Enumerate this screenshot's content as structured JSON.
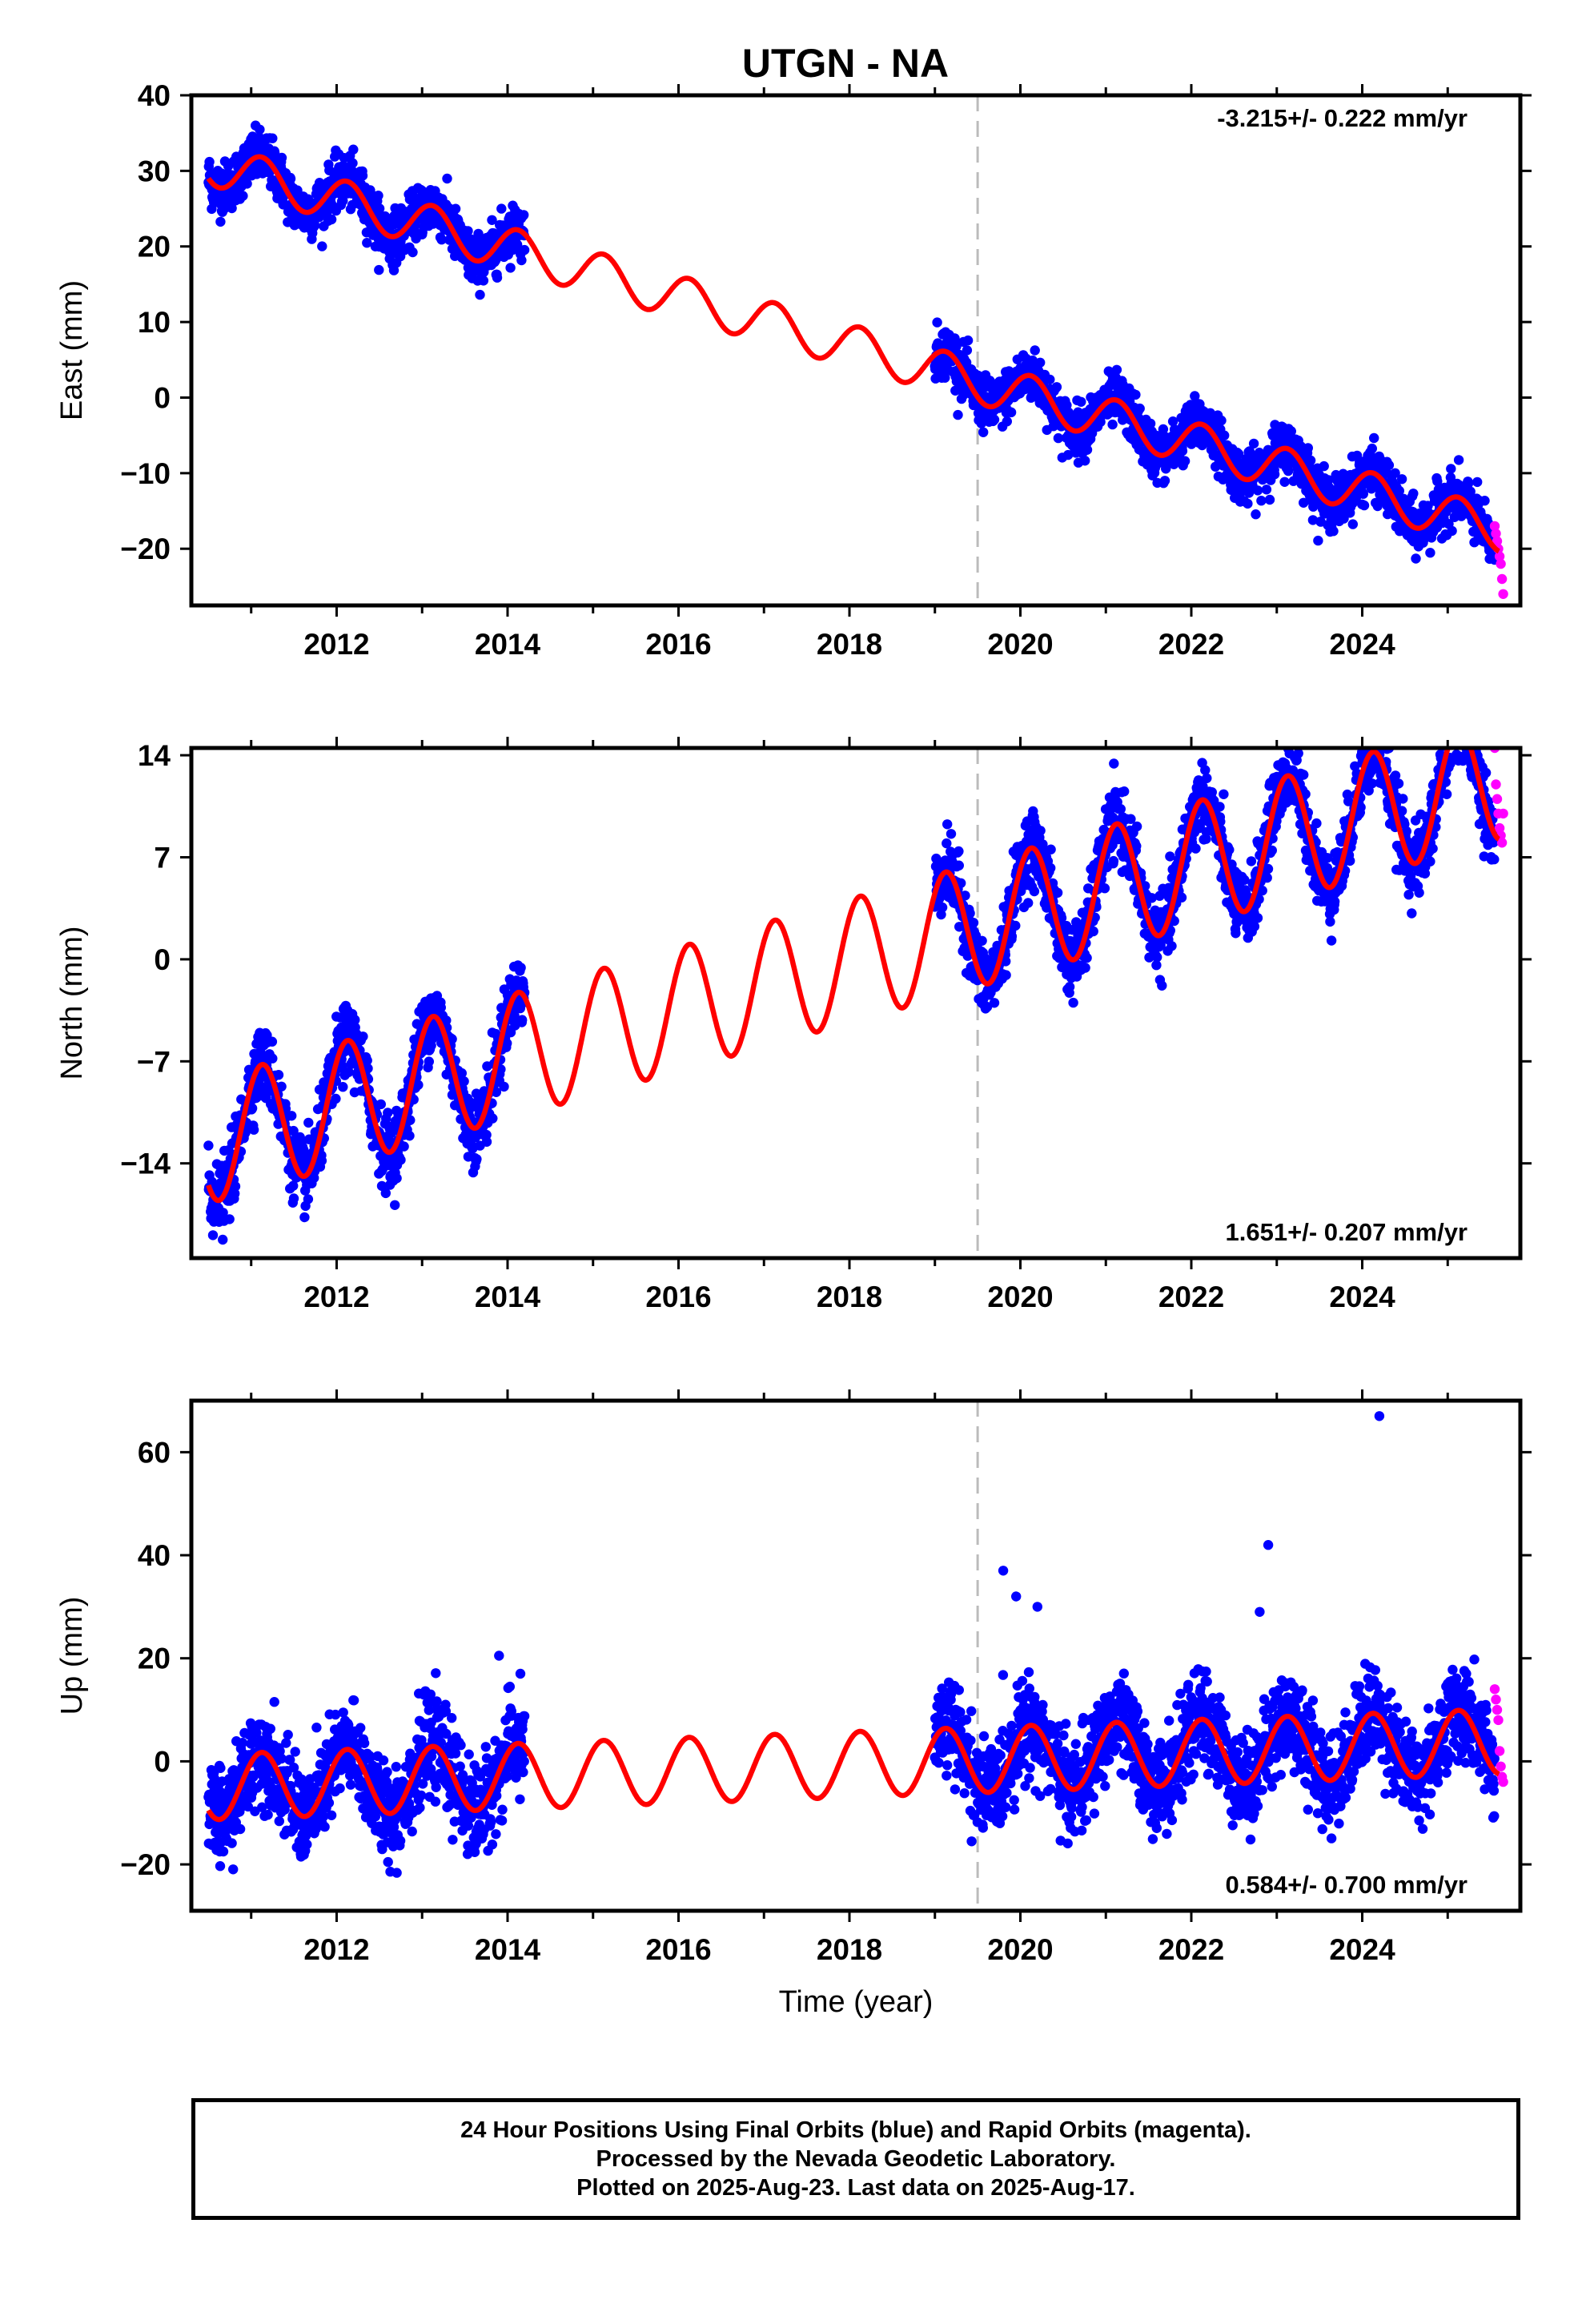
{
  "title": "UTGN - NA",
  "colors": {
    "final_orbits": "#0000ff",
    "rapid_orbits": "#ff00ff",
    "model_fit": "#ff0000",
    "equipment_change": "#bbbbbb"
  },
  "chart_data": [
    {
      "type": "scatter",
      "ylabel": "East (mm)",
      "xlabel": "",
      "xlim": [
        2010.3,
        2025.85
      ],
      "ylim": [
        -27.5,
        40
      ],
      "yticks": [
        -20,
        -10,
        0,
        10,
        20,
        30,
        40
      ],
      "xticks": [
        2012,
        2014,
        2016,
        2018,
        2020,
        2022,
        2024
      ],
      "rate_label": "-3.215+/- 0.222 mm/yr",
      "rate_position": "top-right",
      "equipment_change_year": 2019.5,
      "series": [
        {
          "kind": "final",
          "segments": [
            [
              2010.5,
              2014.2
            ],
            [
              2019.0,
              2025.55
            ]
          ],
          "trend": [
            31.0,
            -3.215
          ],
          "amp": [
            2.0,
            2.0
          ],
          "noise": 1.7
        },
        {
          "kind": "rapid",
          "x_range": [
            2025.55,
            2025.65
          ],
          "values": [
            -17,
            -18,
            -19,
            -20,
            -21,
            -22,
            -24,
            -26
          ]
        },
        {
          "kind": "model",
          "x_range": [
            2010.5,
            2025.6
          ],
          "trend": [
            31.0,
            -3.215
          ],
          "amp": [
            2.0,
            2.0
          ]
        }
      ]
    },
    {
      "type": "scatter",
      "ylabel": "North (mm)",
      "xlabel": "",
      "xlim": [
        2010.3,
        2025.85
      ],
      "ylim": [
        -20.5,
        14.5
      ],
      "yticks": [
        -14,
        -7,
        0,
        7,
        14
      ],
      "xticks": [
        2012,
        2014,
        2016,
        2018,
        2020,
        2022,
        2024
      ],
      "rate_label": "1.651+/- 0.207 mm/yr",
      "rate_position": "bottom-right",
      "equipment_change_year": 2019.5,
      "series": [
        {
          "kind": "final",
          "segments": [
            [
              2010.5,
              2014.2
            ],
            [
              2019.0,
              2025.55
            ]
          ],
          "trend": [
            -12.5,
            1.651
          ],
          "amp": [
            3.0,
            3.0
          ],
          "noise": 1.2
        },
        {
          "kind": "rapid",
          "x_range": [
            2025.55,
            2025.65
          ],
          "values": [
            14.5,
            12,
            11,
            10,
            9,
            8.5,
            8,
            10
          ]
        },
        {
          "kind": "model",
          "x_range": [
            2010.5,
            2025.6
          ],
          "trend": [
            -12.5,
            1.651
          ],
          "amp": [
            3.0,
            3.0
          ]
        }
      ]
    },
    {
      "type": "scatter",
      "ylabel": "Up (mm)",
      "xlabel": "Time (year)",
      "xlim": [
        2010.3,
        2025.85
      ],
      "ylim": [
        -29,
        70
      ],
      "yticks": [
        -20,
        0,
        20,
        40,
        60
      ],
      "xticks": [
        2012,
        2014,
        2016,
        2018,
        2020,
        2022,
        2024
      ],
      "rate_label": "0.584+/- 0.700 mm/yr",
      "rate_position": "bottom-right",
      "equipment_change_year": 2019.5,
      "series": [
        {
          "kind": "final",
          "segments": [
            [
              2010.5,
              2014.2
            ],
            [
              2019.0,
              2025.55
            ]
          ],
          "trend": [
            -5.0,
            0.584
          ],
          "amp": [
            4.5,
            4.5
          ],
          "noise": 4.5
        },
        {
          "kind": "final_outliers",
          "points": [
            [
              2024.2,
              67
            ],
            [
              2022.9,
              42
            ],
            [
              2019.8,
              37
            ],
            [
              2019.95,
              32
            ],
            [
              2020.2,
              30
            ],
            [
              2022.8,
              29
            ],
            [
              2013.9,
              20.5
            ],
            [
              2014.15,
              17
            ]
          ]
        },
        {
          "kind": "rapid",
          "x_range": [
            2025.55,
            2025.65
          ],
          "values": [
            14,
            12,
            10,
            8,
            2,
            -1,
            -3,
            -4
          ]
        },
        {
          "kind": "model",
          "x_range": [
            2010.5,
            2025.6
          ],
          "trend": [
            -5.0,
            0.584
          ],
          "amp": [
            4.5,
            4.5
          ]
        }
      ]
    }
  ],
  "footer": {
    "line1": "24 Hour Positions Using Final Orbits (blue) and Rapid Orbits (magenta).",
    "line2": "Processed by the Nevada Geodetic Laboratory.",
    "line3": "Plotted on 2025-Aug-23. Last data on 2025-Aug-17."
  }
}
